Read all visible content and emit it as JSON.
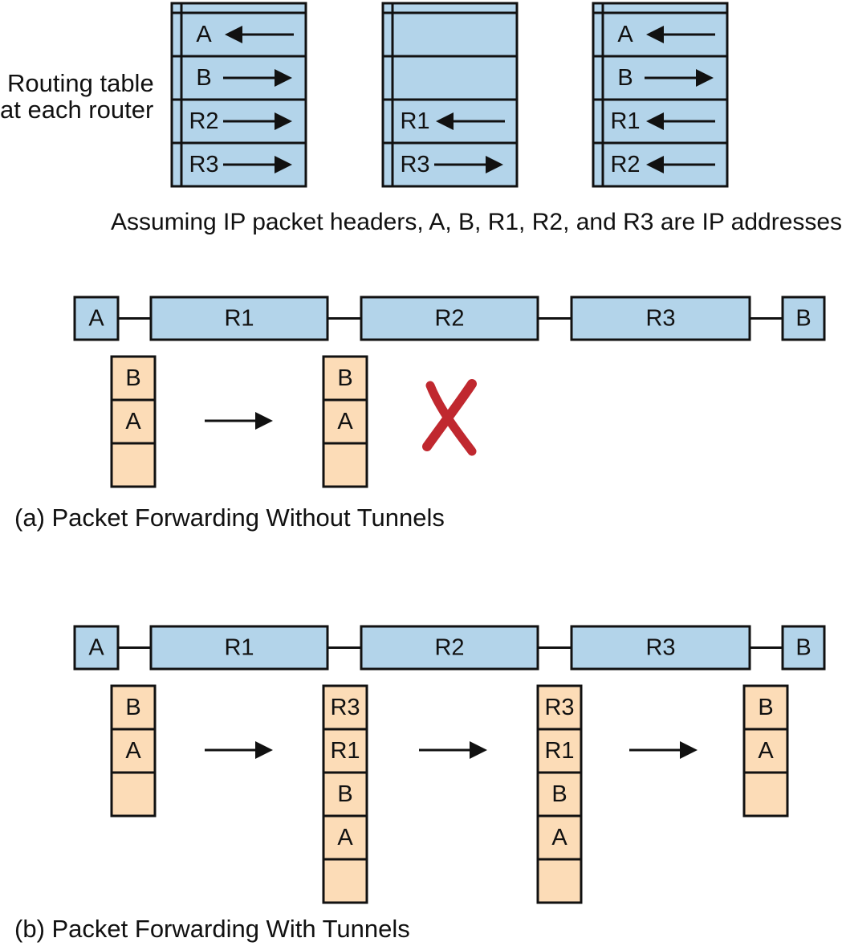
{
  "routing_table_label": [
    "Routing table",
    "at each router"
  ],
  "routing_tables": [
    {
      "rows": [
        {
          "label": "A",
          "dir": "left"
        },
        {
          "label": "B",
          "dir": "right"
        },
        {
          "label": "R2",
          "dir": "right"
        },
        {
          "label": "R3",
          "dir": "right"
        }
      ]
    },
    {
      "rows": [
        {
          "label": "",
          "dir": ""
        },
        {
          "label": "",
          "dir": ""
        },
        {
          "label": "R1",
          "dir": "left"
        },
        {
          "label": "R3",
          "dir": "right"
        }
      ]
    },
    {
      "rows": [
        {
          "label": "A",
          "dir": "left"
        },
        {
          "label": "B",
          "dir": "right"
        },
        {
          "label": "R1",
          "dir": "left"
        },
        {
          "label": "R2",
          "dir": "left"
        }
      ]
    }
  ],
  "assumption_note": "Assuming IP packet headers, A, B, R1, R2, and R3 are IP addresses",
  "path_nodes": [
    "A",
    "R1",
    "R2",
    "R3",
    "B"
  ],
  "section_a": {
    "caption": "(a) Packet Forwarding Without Tunnels",
    "packets": [
      [
        "B",
        "A",
        ""
      ],
      [
        "B",
        "A",
        ""
      ]
    ],
    "dropped": true
  },
  "section_b": {
    "caption": "(b) Packet Forwarding With Tunnels",
    "packets": [
      [
        "B",
        "A",
        ""
      ],
      [
        "R3",
        "R1",
        "B",
        "A",
        ""
      ],
      [
        "R3",
        "R1",
        "B",
        "A",
        ""
      ],
      [
        "B",
        "A",
        ""
      ]
    ]
  },
  "colors": {
    "router_fill": "#b3d4ea",
    "packet_fill": "#fcdcb7",
    "drop_mark": "#c0282f",
    "stroke": "#111111"
  }
}
